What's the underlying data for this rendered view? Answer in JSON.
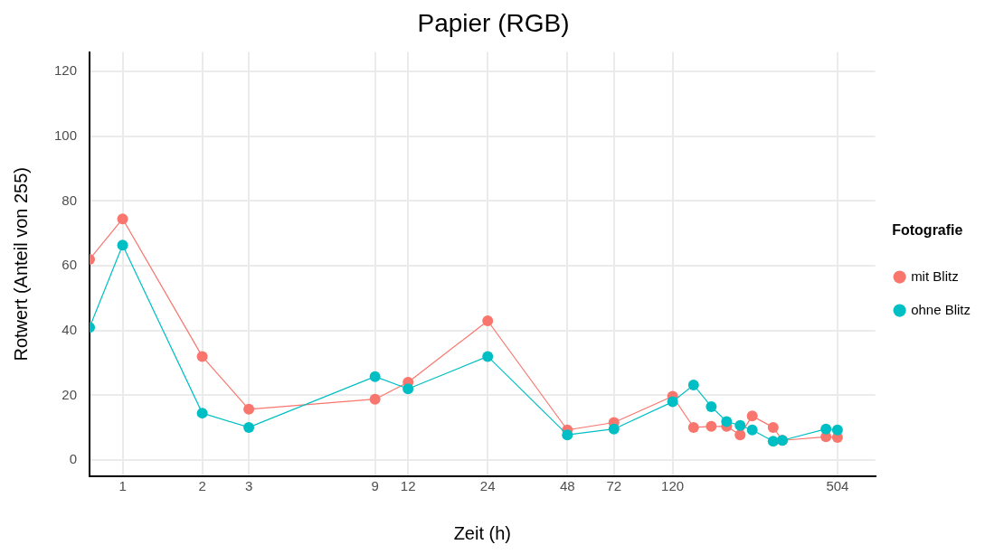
{
  "chart_data": {
    "type": "line",
    "title": "Papier (RGB)",
    "xlabel": "Zeit (h)",
    "ylabel": "Rotwert (Anteil von 255)",
    "legend_title": "Fotografie",
    "log": "x",
    "x": [
      0.75,
      1,
      2,
      3,
      9,
      12,
      24,
      48,
      72,
      120,
      144,
      168,
      192,
      216,
      240,
      288,
      312,
      456,
      504
    ],
    "series": [
      {
        "name": "mit Blitz",
        "color": "#f8766d",
        "values": [
          62,
          74.5,
          32,
          15.7,
          18.8,
          24,
          43,
          9.3,
          11.6,
          19.7,
          10.1,
          10.4,
          10.4,
          7.8,
          13.6,
          10.1,
          6.1,
          7.2,
          7
        ]
      },
      {
        "name": "ohne Blitz",
        "color": "#00bfc4",
        "values": [
          41,
          66.4,
          14.5,
          10.1,
          25.8,
          22,
          32,
          7.8,
          9.6,
          18,
          23.2,
          16.5,
          11.9,
          10.7,
          9.3,
          5.8,
          6.1,
          9.6,
          9.3
        ]
      }
    ],
    "xlim": [
      0.75,
      700
    ],
    "xticks": [
      1,
      2,
      3,
      9,
      12,
      24,
      48,
      72,
      120,
      504
    ],
    "ylim": [
      -5,
      126
    ],
    "yticks": [
      0,
      20,
      40,
      60,
      80,
      100,
      120
    ],
    "grid": true,
    "legend": "right",
    "marker": "circle",
    "line_style": "solid"
  }
}
